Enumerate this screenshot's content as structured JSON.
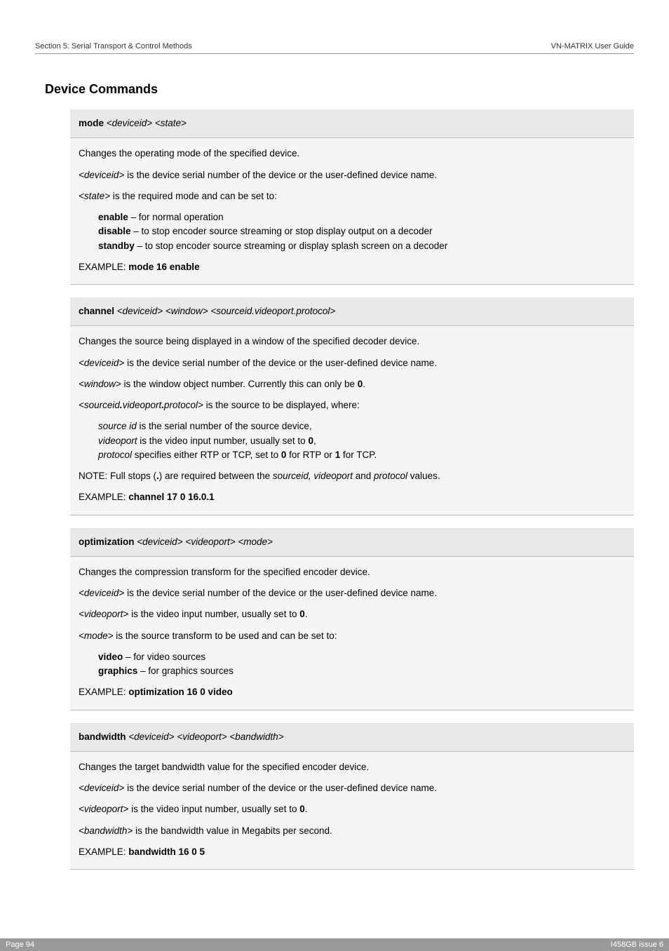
{
  "header": {
    "left": "Section 5: Serial Transport & Control Methods",
    "right": "VN-MATRIX User Guide"
  },
  "section_title": "Device Commands",
  "commands": [
    {
      "name": "mode",
      "args": "<deviceid> <state>",
      "body_html": "<p>Changes the operating mode of the specified device.</p><p><i>&lt;deviceid&gt;</i> is the device serial number of the device or the user-defined device name.</p><p><i>&lt;state&gt;</i> is the required mode and can be set to:</p><div class=\"indent\"><p><b>enable</b> – for normal operation</p><p><b>disable</b> – to stop encoder source streaming or stop display output on a decoder</p><p><b>standby</b> – to stop encoder source streaming or display splash screen on a decoder</p></div><p style=\"margin-top:10px;\">EXAMPLE: <b>mode 16 enable</b></p>"
    },
    {
      "name": "channel",
      "args": "<deviceid> <window> <sourceid.videoport.protocol>",
      "body_html": "<p>Changes the source being displayed in a window of the specified decoder device.</p><p><i>&lt;deviceid&gt;</i> is the device serial number of the device or the user-defined device name.</p><p><i>&lt;window&gt;</i> is the window object number. Currently this can only be <b>0</b>.</p><p><i>&lt;sourceid<b>.</b>videoport<b>.</b>protocol&gt;</i> is the source to be displayed, where:</p><div class=\"indent\"><p><i>source id</i> is the serial number of the source device,</p><p><i>videoport</i> is the video input number, usually set to <b>0</b>,</p><p><i>protocol</i> specifies either RTP or TCP, set to <b>0</b> for RTP or <b>1</b> for TCP.</p></div><p style=\"margin-top:10px;\">NOTE: Full stops (<b>.</b>) are required between the <i>sourceid, videoport</i> and <i>protocol</i> values.</p><p>EXAMPLE: <b>channel 17 0 16.0.1</b></p>"
    },
    {
      "name": "optimization",
      "args": "<deviceid> <videoport> <mode>",
      "body_html": "<p>Changes the compression transform for the specified encoder device.</p><p><i>&lt;deviceid&gt;</i> is the device serial number of the device or the user-defined device name.</p><p><i>&lt;videoport&gt;</i> is the video input number, usually set to <b>0</b>.</p><p><i>&lt;mode&gt;</i> is the source transform to be used and can be set to:</p><div class=\"indent\"><p><b>video</b> – for video sources</p><p><b>graphics</b> – for graphics sources</p></div><p style=\"margin-top:10px;\">EXAMPLE: <b>optimization 16 0 video</b></p>"
    },
    {
      "name": "bandwidth",
      "args": "<deviceid> <videoport> <bandwidth>",
      "body_html": "<p>Changes the target bandwidth value for the specified encoder device.</p><p><i>&lt;deviceid&gt;</i> is the device serial number of the device or the user-defined device name.</p><p><i>&lt;videoport&gt;</i> is the video input number, usually set to <b>0</b>.</p><p><i>&lt;bandwidth&gt;</i> is the bandwidth value in Megabits per second.</p><p>EXAMPLE: <b>bandwidth 16 0 5</b></p>"
    }
  ],
  "footer": {
    "left": "Page 94",
    "right": "I458GB issue 6"
  },
  "colors": {
    "header_bg": "#e8e8e8",
    "body_bg": "#f5f5f5",
    "border": "#bcbcbc",
    "footer_bg": "#999999",
    "footer_text": "#ffffff"
  }
}
